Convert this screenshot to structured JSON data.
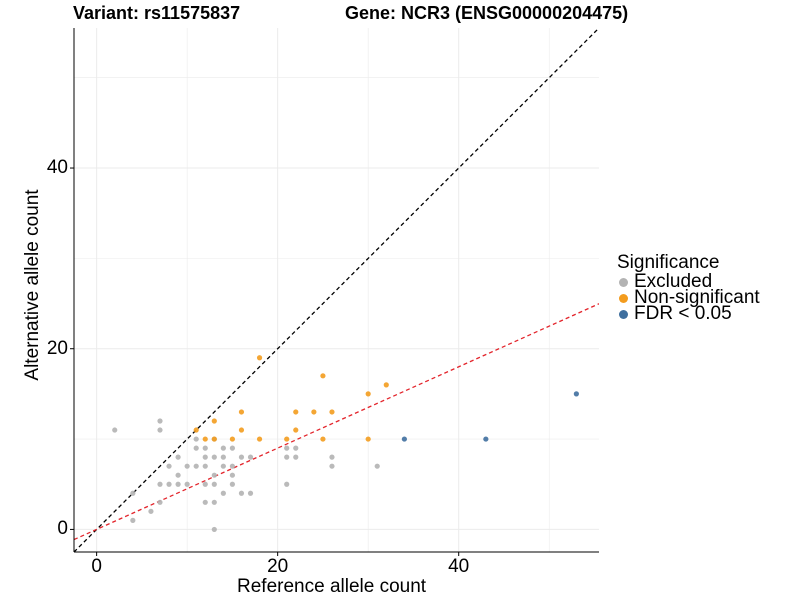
{
  "chart_data": {
    "type": "scatter",
    "title_left": "Variant: rs11575837",
    "title_right": "Gene: NCR3 (ENSG00000204475)",
    "xlabel": "Reference allele count",
    "ylabel": "Alternative allele count",
    "xlim": [
      -2.5,
      55.5
    ],
    "ylim": [
      -2.5,
      55.5
    ],
    "x_ticks": [
      0,
      20,
      40
    ],
    "y_ticks": [
      0,
      20,
      40
    ],
    "grid": true,
    "legend": {
      "title": "Significance",
      "position": "right",
      "entries": [
        {
          "name": "Excluded",
          "color": "#b3b3b3"
        },
        {
          "name": "Non-significant",
          "color": "#f39c1e"
        },
        {
          "name": "FDR < 0.05",
          "color": "#3f6f9e"
        }
      ]
    },
    "reference_lines": [
      {
        "name": "y = x",
        "slope": 1,
        "intercept": 0,
        "color": "#000000",
        "dash": "dashed"
      },
      {
        "name": "fitted ratio",
        "slope": 0.45,
        "intercept": 0,
        "color": "#e3242b",
        "dash": "dashed"
      }
    ],
    "series": [
      {
        "name": "Excluded",
        "color": "#b3b3b3",
        "points": [
          [
            2,
            11
          ],
          [
            4,
            1
          ],
          [
            4,
            4
          ],
          [
            6,
            2
          ],
          [
            7,
            12
          ],
          [
            7,
            11
          ],
          [
            7,
            5
          ],
          [
            7,
            3
          ],
          [
            8,
            7
          ],
          [
            8,
            5
          ],
          [
            9,
            8
          ],
          [
            9,
            5
          ],
          [
            9,
            6
          ],
          [
            10,
            7
          ],
          [
            10,
            5
          ],
          [
            11,
            9
          ],
          [
            11,
            7
          ],
          [
            11,
            10
          ],
          [
            12,
            9
          ],
          [
            12,
            8
          ],
          [
            12,
            7
          ],
          [
            12,
            5
          ],
          [
            12,
            3
          ],
          [
            13,
            10
          ],
          [
            13,
            8
          ],
          [
            13,
            6
          ],
          [
            13,
            5
          ],
          [
            13,
            3
          ],
          [
            13,
            0
          ],
          [
            14,
            8
          ],
          [
            14,
            7
          ],
          [
            14,
            9
          ],
          [
            14,
            4
          ],
          [
            15,
            9
          ],
          [
            15,
            7
          ],
          [
            15,
            6
          ],
          [
            15,
            5
          ],
          [
            16,
            8
          ],
          [
            16,
            4
          ],
          [
            17,
            8
          ],
          [
            17,
            4
          ],
          [
            21,
            9
          ],
          [
            21,
            8
          ],
          [
            21,
            5
          ],
          [
            22,
            9
          ],
          [
            22,
            8
          ],
          [
            26,
            8
          ],
          [
            26,
            7
          ],
          [
            31,
            7
          ]
        ]
      },
      {
        "name": "Non-significant",
        "color": "#f39c1e",
        "points": [
          [
            11,
            11
          ],
          [
            12,
            10
          ],
          [
            13,
            12
          ],
          [
            13,
            10
          ],
          [
            15,
            10
          ],
          [
            16,
            13
          ],
          [
            16,
            11
          ],
          [
            18,
            19
          ],
          [
            18,
            10
          ],
          [
            21,
            10
          ],
          [
            22,
            13
          ],
          [
            22,
            11
          ],
          [
            24,
            13
          ],
          [
            25,
            17
          ],
          [
            25,
            10
          ],
          [
            26,
            13
          ],
          [
            30,
            15
          ],
          [
            30,
            10
          ],
          [
            32,
            16
          ]
        ]
      },
      {
        "name": "FDR < 0.05",
        "color": "#3f6f9e",
        "points": [
          [
            34,
            10
          ],
          [
            43,
            10
          ],
          [
            53,
            15
          ]
        ]
      }
    ]
  }
}
